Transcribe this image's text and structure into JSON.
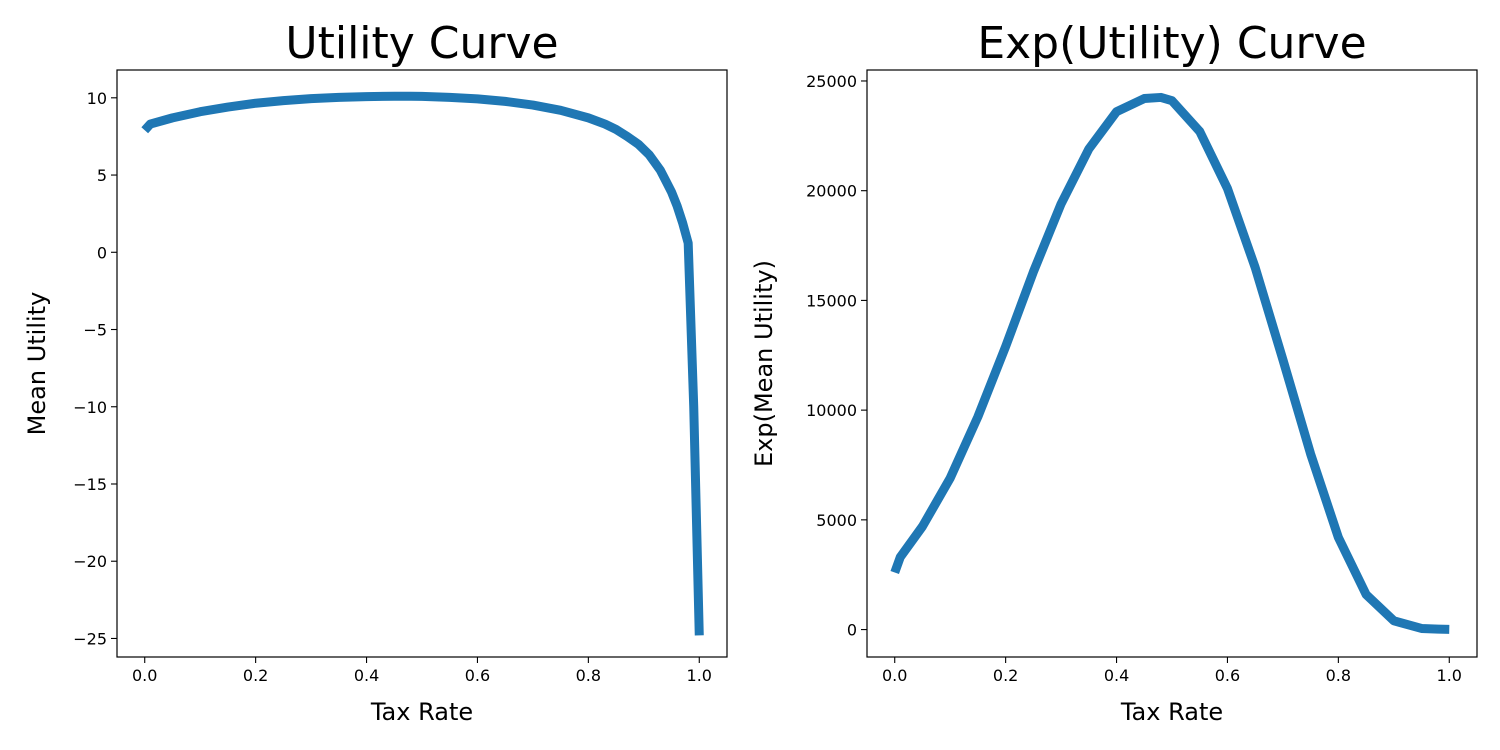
{
  "chart_data": [
    {
      "type": "line",
      "title": "Utility Curve",
      "xlabel": "Tax Rate",
      "ylabel": "Mean Utility",
      "xlim": [
        -0.05,
        1.05
      ],
      "ylim": [
        -26.2,
        11.8
      ],
      "xticks": [
        0.0,
        0.2,
        0.4,
        0.6,
        0.8,
        1.0
      ],
      "xtick_labels": [
        "0.0",
        "0.2",
        "0.4",
        "0.6",
        "0.8",
        "1.0"
      ],
      "yticks": [
        10,
        5,
        0,
        -5,
        -10,
        -15,
        -20,
        -25
      ],
      "ytick_labels": [
        "10",
        "5",
        "0",
        "−5",
        "−10",
        "−15",
        "−20",
        "−25"
      ],
      "grid": false,
      "color": "#1f77b4",
      "series": [
        {
          "x": [
            0.0,
            0.01,
            0.05,
            0.1,
            0.15,
            0.2,
            0.25,
            0.3,
            0.35,
            0.4,
            0.45,
            0.48,
            0.5,
            0.55,
            0.6,
            0.65,
            0.7,
            0.75,
            0.8,
            0.83,
            0.85,
            0.87,
            0.89,
            0.91,
            0.93,
            0.94,
            0.95,
            0.96,
            0.97,
            0.98,
            0.99,
            1.0
          ],
          "y": [
            7.9,
            8.3,
            8.7,
            9.1,
            9.4,
            9.65,
            9.82,
            9.95,
            10.03,
            10.08,
            10.1,
            10.1,
            10.09,
            10.03,
            9.93,
            9.77,
            9.53,
            9.19,
            8.7,
            8.3,
            7.95,
            7.5,
            7.0,
            6.3,
            5.3,
            4.6,
            3.9,
            3.0,
            1.9,
            0.6,
            -10.0,
            -24.8
          ]
        }
      ]
    },
    {
      "type": "line",
      "title": "Exp(Utility) Curve",
      "xlabel": "Tax Rate",
      "ylabel": "Exp(Mean Utility)",
      "xlim": [
        -0.05,
        1.05
      ],
      "ylim": [
        -1250,
        25500
      ],
      "xticks": [
        0.0,
        0.2,
        0.4,
        0.6,
        0.8,
        1.0
      ],
      "xtick_labels": [
        "0.0",
        "0.2",
        "0.4",
        "0.6",
        "0.8",
        "1.0"
      ],
      "yticks": [
        0,
        5000,
        10000,
        15000,
        20000,
        25000
      ],
      "ytick_labels": [
        "0",
        "5000",
        "10000",
        "15000",
        "20000",
        "25000"
      ],
      "grid": false,
      "color": "#1f77b4",
      "series": [
        {
          "x": [
            0.0,
            0.01,
            0.05,
            0.1,
            0.15,
            0.2,
            0.25,
            0.3,
            0.35,
            0.4,
            0.45,
            0.48,
            0.5,
            0.55,
            0.6,
            0.65,
            0.7,
            0.75,
            0.8,
            0.85,
            0.9,
            0.95,
            0.98,
            1.0
          ],
          "y": [
            2600,
            3300,
            4700,
            6900,
            9700,
            12900,
            16300,
            19400,
            21900,
            23600,
            24200,
            24250,
            24100,
            22700,
            20100,
            16500,
            12300,
            8000,
            4200,
            1600,
            400,
            50,
            20,
            10
          ]
        }
      ]
    }
  ]
}
